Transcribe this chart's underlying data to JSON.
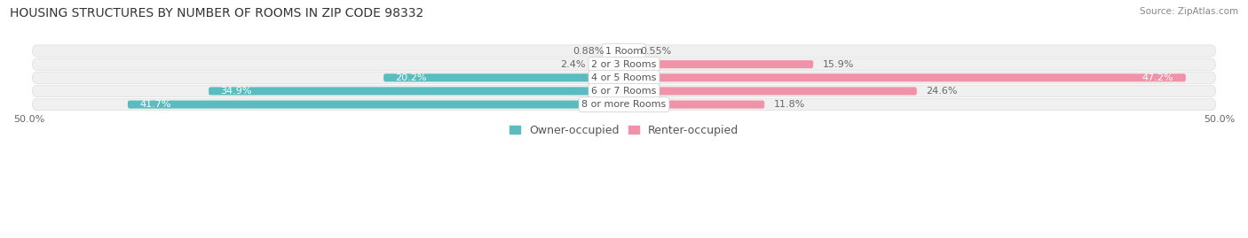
{
  "title": "HOUSING STRUCTURES BY NUMBER OF ROOMS IN ZIP CODE 98332",
  "source": "Source: ZipAtlas.com",
  "categories": [
    "1 Room",
    "2 or 3 Rooms",
    "4 or 5 Rooms",
    "6 or 7 Rooms",
    "8 or more Rooms"
  ],
  "owner_values": [
    0.88,
    2.4,
    20.2,
    34.9,
    41.7
  ],
  "renter_values": [
    0.55,
    15.9,
    47.2,
    24.6,
    11.8
  ],
  "owner_color": "#5bbcbf",
  "renter_color": "#f093a8",
  "row_bg_color": "#f0f0f0",
  "row_border_color": "#dddddd",
  "max_value": 50.0,
  "title_fontsize": 10,
  "source_fontsize": 7.5,
  "label_fontsize": 8,
  "category_fontsize": 8,
  "legend_fontsize": 9,
  "bar_height": 0.6,
  "background_color": "#ffffff",
  "owner_label_inside_threshold": 15,
  "renter_label_inside_threshold": 40
}
